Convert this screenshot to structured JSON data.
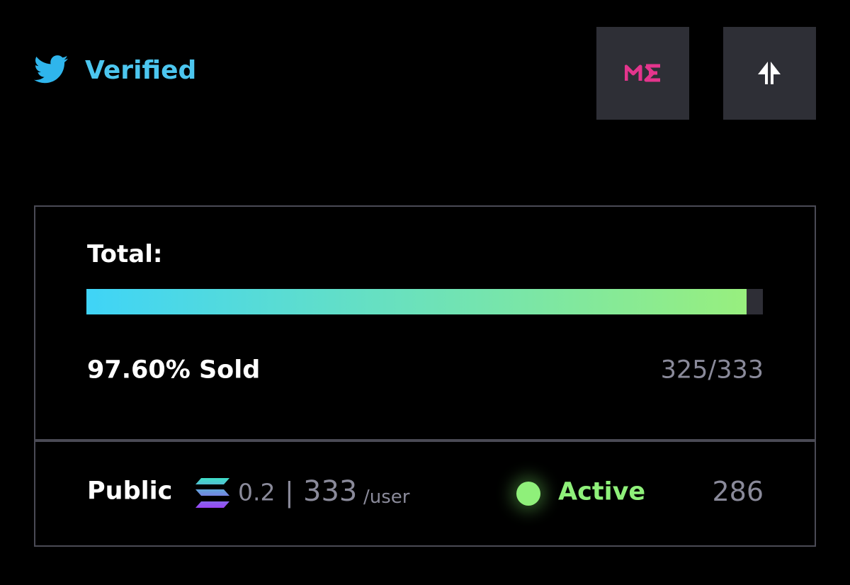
{
  "header": {
    "badge": "Verified"
  },
  "total": {
    "label": "Total:",
    "value": 97.6,
    "sold_label": "97.60% Sold",
    "count": "325/333"
  },
  "phase": {
    "name": "Public",
    "price": "0.2",
    "separator": "|",
    "limit": "333",
    "limit_unit": "/user",
    "status": "Active",
    "count": "286"
  }
}
